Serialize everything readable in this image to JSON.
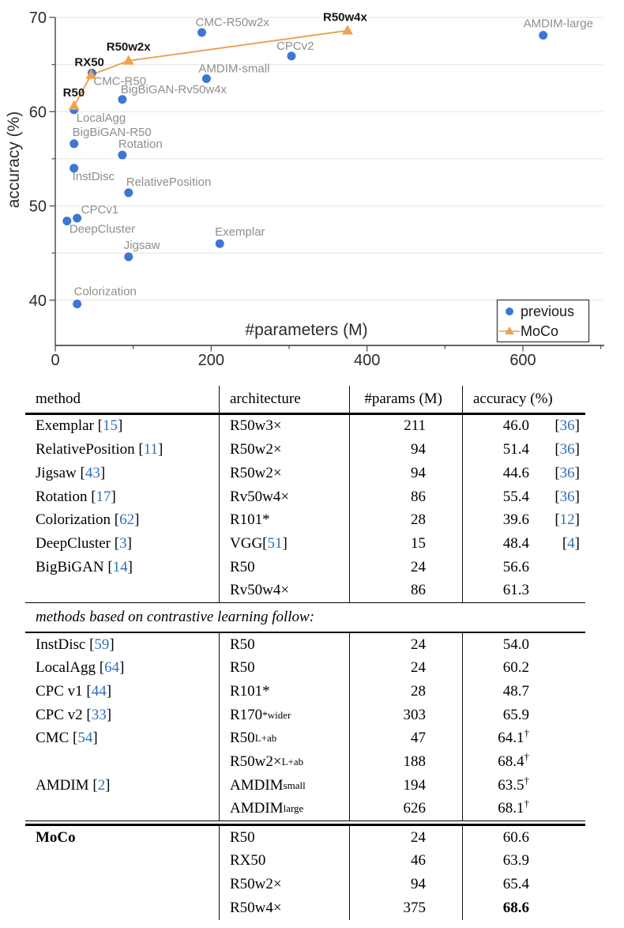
{
  "chart_data": {
    "type": "scatter",
    "title": "",
    "xlabel": "#parameters (M)",
    "ylabel": "accuracy (%)",
    "xlim": [
      0,
      700
    ],
    "ylim": [
      35.2,
      70
    ],
    "x_ticks_major": [
      0,
      200,
      400,
      600
    ],
    "x_ticks_minor": [
      100,
      300,
      500,
      700
    ],
    "y_ticks_major": [
      40,
      50,
      60,
      70
    ],
    "y_ticks_minor": [
      45,
      55,
      65
    ],
    "gridlines_y": [
      40,
      45,
      50,
      55,
      60,
      65,
      70
    ],
    "grid": true,
    "colors": {
      "previous": "#3e76d3",
      "moco": "#eda24f",
      "moco_line": "#ec9e45",
      "gray_label": "#8e8e8e",
      "black_label": "#151515",
      "spine": "#4f4f4f",
      "gridline": "#e8e8e8",
      "tick_label": "#2b2b2b"
    },
    "legend": {
      "position": "lower right",
      "entries": [
        {
          "label": "previous",
          "marker": "circle"
        },
        {
          "label": "MoCo",
          "marker": "triangle-line"
        }
      ]
    },
    "series": [
      {
        "name": "previous",
        "marker": "circle",
        "points": [
          {
            "label": "Exemplar",
            "x": 211,
            "y": 46.0,
            "dx": -6,
            "dy": -10
          },
          {
            "label": "RelativePosition",
            "x": 94,
            "y": 51.4,
            "dx": -3,
            "dy": -9
          },
          {
            "label": "Jigsaw",
            "x": 94,
            "y": 44.6,
            "dx": -6,
            "dy": -10
          },
          {
            "label": "Rotation",
            "x": 86,
            "y": 55.4,
            "dx": -5,
            "dy": -9
          },
          {
            "label": "Colorization",
            "x": 28,
            "y": 39.6,
            "dx": -4,
            "dy": -11
          },
          {
            "label": "DeepCluster",
            "x": 15,
            "y": 48.4,
            "dx": 3,
            "dy": 15
          },
          {
            "label": "BigBiGAN-R50",
            "x": 24,
            "y": 56.6,
            "dx": -2,
            "dy": -10
          },
          {
            "label": "BigBiGAN-Rv50w4x",
            "x": 86,
            "y": 61.3,
            "dx": -2,
            "dy": -8
          },
          {
            "label": "InstDisc",
            "x": 24,
            "y": 54.0,
            "dx": -2,
            "dy": 15
          },
          {
            "label": "LocalAgg",
            "x": 24,
            "y": 60.2,
            "dx": 3,
            "dy": 15
          },
          {
            "label": "CPCv1",
            "x": 28,
            "y": 48.7,
            "dx": 5,
            "dy": -6
          },
          {
            "label": "CPCv2",
            "x": 303,
            "y": 65.9,
            "dx": -19,
            "dy": -8
          },
          {
            "label": "CMC-R50",
            "x": 47,
            "y": 64.1,
            "dx": 2,
            "dy": 15
          },
          {
            "label": "CMC-R50w2x",
            "x": 188,
            "y": 68.4,
            "dx": -8,
            "dy": -8
          },
          {
            "label": "AMDIM-small",
            "x": 194,
            "y": 63.5,
            "dx": -10,
            "dy": -8
          },
          {
            "label": "AMDIM-large",
            "x": 626,
            "y": 68.1,
            "dx": -25,
            "dy": -10
          }
        ]
      },
      {
        "name": "MoCo",
        "marker": "triangle",
        "line": true,
        "points": [
          {
            "label": "R50",
            "x": 24,
            "y": 60.6,
            "dx": -14,
            "dy": -12
          },
          {
            "label": "RX50",
            "x": 46,
            "y": 63.9,
            "dx": -21,
            "dy": -11
          },
          {
            "label": "R50w2x",
            "x": 94,
            "y": 65.4,
            "dx": -28,
            "dy": -13
          },
          {
            "label": "R50w4x",
            "x": 375,
            "y": 68.6,
            "dx": -31,
            "dy": -12
          }
        ]
      }
    ]
  },
  "table": {
    "headers": [
      "method",
      "architecture",
      "#params (M)",
      "accuracy (%)"
    ],
    "sections": [
      {
        "rows": [
          {
            "m": "Exemplar",
            "mc": "15",
            "a": "R50w3×",
            "p": "211",
            "v": "46.0",
            "vc": "36"
          },
          {
            "m": "RelativePosition",
            "mc": "11",
            "a": "R50w2×",
            "p": "94",
            "v": "51.4",
            "vc": "36"
          },
          {
            "m": "Jigsaw",
            "mc": "43",
            "a": "R50w2×",
            "p": "94",
            "v": "44.6",
            "vc": "36"
          },
          {
            "m": "Rotation",
            "mc": "17",
            "a": "Rv50w4×",
            "p": "86",
            "v": "55.4",
            "vc": "36"
          },
          {
            "m": "Colorization",
            "mc": "62",
            "a": "R101*",
            "p": "28",
            "v": "39.6",
            "vc": "12"
          },
          {
            "m": "DeepCluster",
            "mc": "3",
            "a": "VGG",
            "ac": "51",
            "p": "15",
            "v": "48.4",
            "vc": "4"
          },
          {
            "m": "BigBiGAN",
            "mc": "14",
            "a": "R50",
            "p": "24",
            "v": "56.6"
          },
          {
            "m": "",
            "a": "Rv50w4×",
            "p": "86",
            "v": "61.3"
          }
        ]
      },
      {
        "label": "methods based on contrastive learning follow:",
        "rows": [
          {
            "m": "InstDisc",
            "mc": "59",
            "a": "R50",
            "p": "24",
            "v": "54.0"
          },
          {
            "m": "LocalAgg",
            "mc": "64",
            "a": "R50",
            "p": "24",
            "v": "60.2"
          },
          {
            "m": "CPC v1",
            "mc": "44",
            "a": "R101*",
            "p": "28",
            "v": "48.7"
          },
          {
            "m": "CPC v2",
            "mc": "33",
            "a": "R170",
            "asup": "*",
            "asub": "wider",
            "p": "303",
            "v": "65.9"
          },
          {
            "m": "CMC",
            "mc": "54",
            "a": "R50",
            "asub": "L+ab",
            "p": "47",
            "v": "64.1",
            "dag": true
          },
          {
            "m": "",
            "a": "R50w2×",
            "asub": "L+ab",
            "p": "188",
            "v": "68.4",
            "dag": true
          },
          {
            "m": "AMDIM",
            "mc": "2",
            "a": "AMDIM",
            "asub": "small",
            "p": "194",
            "v": "63.5",
            "dag": true
          },
          {
            "m": "",
            "a": "AMDIM",
            "asub": "large",
            "p": "626",
            "v": "68.1",
            "dag": true
          }
        ]
      },
      {
        "divider": "double",
        "rows": [
          {
            "m": "MoCo",
            "bm": true,
            "a": "R50",
            "p": "24",
            "v": "60.6"
          },
          {
            "m": "",
            "a": "RX50",
            "p": "46",
            "v": "63.9"
          },
          {
            "m": "",
            "a": "R50w2×",
            "p": "94",
            "v": "65.4"
          },
          {
            "m": "",
            "a": "R50w4×",
            "p": "375",
            "v": "68.6",
            "bv": true
          }
        ]
      }
    ]
  }
}
